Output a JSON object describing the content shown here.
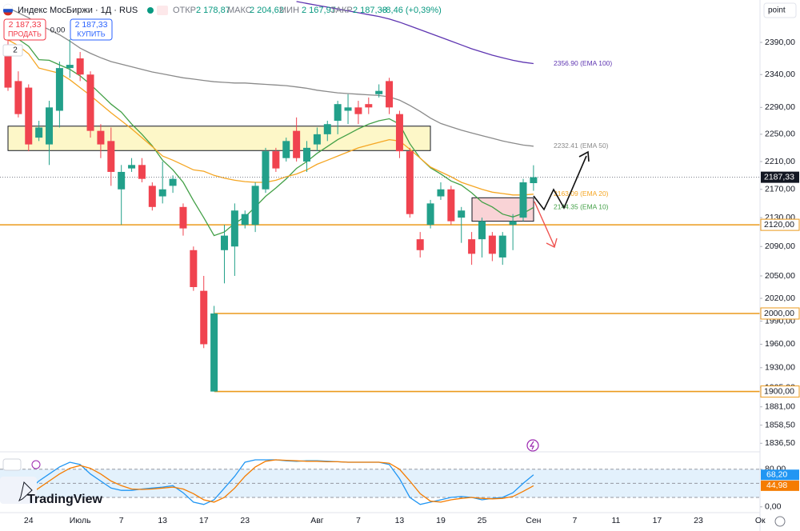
{
  "header": {
    "symbol": "Индекс МосБиржи · 1Д · RUS",
    "open_label": "ОТКР",
    "open": "2 178,87",
    "high_label": "МАКС",
    "high": "2 204,62",
    "low_label": "МИН",
    "low": "2 167,97",
    "close_label": "ЗАКР",
    "close": "2 187,33",
    "change": "+8,46 (+0,39%)",
    "sell_price": "2 187,33",
    "sell": "ПРОДАТЬ",
    "spread": "0,00",
    "buy_price": "2 187,33",
    "buy": "КУПИТЬ",
    "indicators": "2",
    "scale": "point",
    "watermark": "TradingView"
  },
  "chart_data": [
    {
      "type": "candlestick",
      "log_scale": true,
      "grid": false,
      "ylim": [
        1831,
        2457.5
      ],
      "yticks": [
        {
          "value": 2390,
          "label": "2390,00"
        },
        {
          "value": 2340,
          "label": "2340,00"
        },
        {
          "value": 2290,
          "label": "2290,00"
        },
        {
          "value": 2250,
          "label": "2250,00"
        },
        {
          "value": 2210,
          "label": "2210,00"
        },
        {
          "value": 2170,
          "label": "2170,00"
        },
        {
          "value": 2130,
          "label": "2130,00"
        },
        {
          "value": 2090,
          "label": "2090,00"
        },
        {
          "value": 2050,
          "label": "2050,00"
        },
        {
          "value": 2020,
          "label": "2020,00"
        },
        {
          "value": 1990,
          "label": "1990,00"
        },
        {
          "value": 1960,
          "label": "1960,00"
        },
        {
          "value": 1930,
          "label": "1930,00"
        },
        {
          "value": 1905,
          "label": "1905,00"
        },
        {
          "value": 1881,
          "label": "1881,00"
        },
        {
          "value": 1858.5,
          "label": "1858,50"
        },
        {
          "value": 1836.5,
          "label": "1836,50"
        }
      ],
      "categories": [
        null,
        null,
        "24",
        null,
        null,
        null,
        null,
        "Июль",
        null,
        null,
        null,
        "7",
        null,
        null,
        null,
        "13",
        null,
        null,
        null,
        "17",
        null,
        null,
        null,
        "23",
        null,
        null,
        null,
        null,
        null,
        null,
        "Авг",
        null,
        null,
        null,
        "7",
        null,
        null,
        null,
        "13",
        null,
        null,
        null,
        "19",
        null,
        null,
        null,
        "25",
        null,
        null,
        null,
        null,
        "Сен"
      ],
      "future_labels": [
        "7",
        "11",
        "17",
        "23",
        "Ок"
      ],
      "open": [
        2375,
        2330,
        2320,
        2245,
        2235,
        2285,
        2350,
        2365,
        2340,
        2255,
        2240,
        2170,
        2200,
        2205,
        2175,
        2160,
        2175,
        2145,
        2085,
        2030,
        1900,
        2085,
        2090,
        2120,
        2120,
        2170,
        2225,
        2215,
        2255,
        2210,
        2235,
        2250,
        2270,
        2285,
        2290,
        2295,
        2310,
        2330,
        2280,
        2225,
        2100,
        2120,
        2160,
        2170,
        2130,
        2100,
        2100,
        2105,
        2075,
        2120,
        2130,
        2178.87
      ],
      "high": [
        2395,
        2345,
        2325,
        2270,
        2300,
        2360,
        2395,
        2375,
        2345,
        2265,
        2260,
        2205,
        2215,
        2215,
        2180,
        2210,
        2190,
        2150,
        2090,
        2050,
        2010,
        2120,
        2150,
        2140,
        2180,
        2230,
        2230,
        2245,
        2275,
        2240,
        2260,
        2270,
        2300,
        2310,
        2300,
        2305,
        2325,
        2335,
        2285,
        2230,
        2110,
        2155,
        2180,
        2175,
        2145,
        2110,
        2130,
        2110,
        2110,
        2135,
        2185,
        2204.62
      ],
      "low": [
        2315,
        2275,
        2225,
        2240,
        2205,
        2260,
        2335,
        2330,
        2245,
        2215,
        2175,
        2120,
        2195,
        2180,
        2140,
        2150,
        2165,
        2105,
        2030,
        1955,
        1900,
        2040,
        2050,
        2115,
        2110,
        2165,
        2195,
        2210,
        2210,
        2195,
        2225,
        2240,
        2250,
        2265,
        2265,
        2280,
        2305,
        2280,
        2215,
        2130,
        2075,
        2115,
        2155,
        2120,
        2095,
        2065,
        2075,
        2070,
        2065,
        2085,
        2125,
        2167.97
      ],
      "close": [
        2320,
        2280,
        2235,
        2260,
        2290,
        2350,
        2355,
        2340,
        2255,
        2235,
        2195,
        2195,
        2205,
        2185,
        2145,
        2170,
        2185,
        2115,
        2035,
        1960,
        2000,
        2105,
        2140,
        2135,
        2175,
        2225,
        2200,
        2240,
        2215,
        2230,
        2250,
        2265,
        2295,
        2290,
        2280,
        2290,
        2315,
        2290,
        2225,
        2135,
        2085,
        2150,
        2170,
        2125,
        2140,
        2080,
        2125,
        2080,
        2105,
        2125,
        2180,
        2187.33
      ],
      "up_color": "#22a08a",
      "down_color": "#f0434f",
      "series": [
        {
          "color": "#43a047",
          "end_label": "2144.35 (EMA 10)",
          "values": [
            2406,
            2395,
            2384,
            2363,
            2362,
            2355,
            2348,
            2338,
            2325,
            2310,
            2295,
            2283,
            2265,
            2250,
            2233,
            2212,
            2198,
            2180,
            2154,
            2130,
            2105,
            2110,
            2122,
            2131,
            2145,
            2160,
            2172,
            2185,
            2200,
            2210,
            2222,
            2232,
            2242,
            2250,
            2258,
            2265,
            2270,
            2273,
            2265,
            2236,
            2215,
            2201,
            2192,
            2182,
            2176,
            2165,
            2152,
            2145,
            2135,
            2131,
            2136,
            2144.35
          ]
        },
        {
          "color": "#f5a623",
          "end_label": "2163.09 (EMA 20)",
          "values": [
            2394,
            2385,
            2372,
            2350,
            2346,
            2342,
            2332,
            2320,
            2308,
            2295,
            2282,
            2270,
            2258,
            2245,
            2232,
            2218,
            2212,
            2205,
            2198,
            2196,
            2190,
            2186,
            2183,
            2181,
            2180,
            2180,
            2183,
            2188,
            2192,
            2198,
            2206,
            2212,
            2218,
            2224,
            2230,
            2234,
            2238,
            2242,
            2240,
            2228,
            2215,
            2202,
            2195,
            2188,
            2180,
            2175,
            2170,
            2166,
            2164,
            2162,
            2162,
            2163.09
          ]
        },
        {
          "color": "#8a8a8a",
          "end_label": "2232.41 (EMA 50)",
          "values": [
            2445,
            2437,
            2429,
            2418,
            2410,
            2402,
            2392,
            2381,
            2373,
            2366,
            2360,
            2356,
            2352,
            2348,
            2344,
            2341,
            2338,
            2335,
            2333,
            2331,
            2329,
            2328,
            2327,
            2327,
            2326,
            2325,
            2324,
            2323,
            2321,
            2319,
            2316,
            2314,
            2312,
            2311,
            2310,
            2309,
            2308,
            2306,
            2301,
            2293,
            2284,
            2274,
            2266,
            2261,
            2256,
            2252,
            2248,
            2244,
            2240,
            2237,
            2234,
            2232.41
          ]
        },
        {
          "color": "#5e35b1",
          "end_label": "2356.90 (EMA 100)",
          "values": [
            null,
            null,
            null,
            null,
            null,
            null,
            null,
            null,
            null,
            null,
            null,
            null,
            null,
            null,
            null,
            null,
            null,
            null,
            null,
            null,
            null,
            null,
            null,
            null,
            null,
            null,
            null,
            null,
            2455,
            2452,
            2449,
            2446,
            2443,
            2440,
            2437,
            2434,
            2431,
            2427,
            2422,
            2416,
            2410,
            2404,
            2398,
            2392,
            2386,
            2380,
            2375,
            2370,
            2366,
            2362,
            2359,
            2356.9
          ]
        }
      ],
      "last_price": {
        "value": 2187.33,
        "label": "2187,33"
      },
      "levels": [
        {
          "value": 2120,
          "label": "2120,00"
        },
        {
          "value": 2000,
          "label": "2000,00"
        },
        {
          "value": 1900,
          "label": "1900,00"
        }
      ],
      "level_color": "#eb9a1c",
      "zones": [
        {
          "top": 2262,
          "bottom": 2226,
          "color": "#fdf7c8"
        },
        {
          "top": 2158,
          "bottom": 2125,
          "color": "#f9d3d6"
        }
      ]
    },
    {
      "type": "line",
      "ylim": [
        -14,
        112
      ],
      "yticks": [
        {
          "value": 0,
          "label": "0,00"
        },
        {
          "value": 80,
          "label": "80,00"
        }
      ],
      "hlines": [
        80,
        50,
        20
      ],
      "band": [
        20,
        80
      ],
      "band_color": "#e3f1fc",
      "series": [
        {
          "color": "#2196f3",
          "end_label": "68,20",
          "values": [
            10,
            20,
            35,
            55,
            70,
            85,
            95,
            90,
            70,
            55,
            40,
            35,
            35,
            38,
            40,
            42,
            45,
            30,
            10,
            5,
            15,
            40,
            65,
            95,
            100,
            100,
            100,
            98,
            97,
            98,
            98,
            97,
            96,
            95,
            95,
            95,
            95,
            90,
            60,
            20,
            5,
            10,
            15,
            20,
            22,
            20,
            15,
            18,
            20,
            30,
            50,
            68.2
          ]
        },
        {
          "color": "#f57c00",
          "end_label": "44,98",
          "values": [
            10,
            15,
            25,
            40,
            55,
            70,
            82,
            88,
            82,
            70,
            55,
            45,
            38,
            37,
            38,
            40,
            42,
            38,
            28,
            15,
            10,
            20,
            40,
            65,
            85,
            97,
            100,
            99,
            98,
            97,
            97,
            96,
            96,
            95,
            95,
            95,
            95,
            93,
            80,
            55,
            28,
            12,
            10,
            15,
            18,
            20,
            18,
            17,
            18,
            22,
            33,
            44.98
          ]
        }
      ]
    }
  ]
}
